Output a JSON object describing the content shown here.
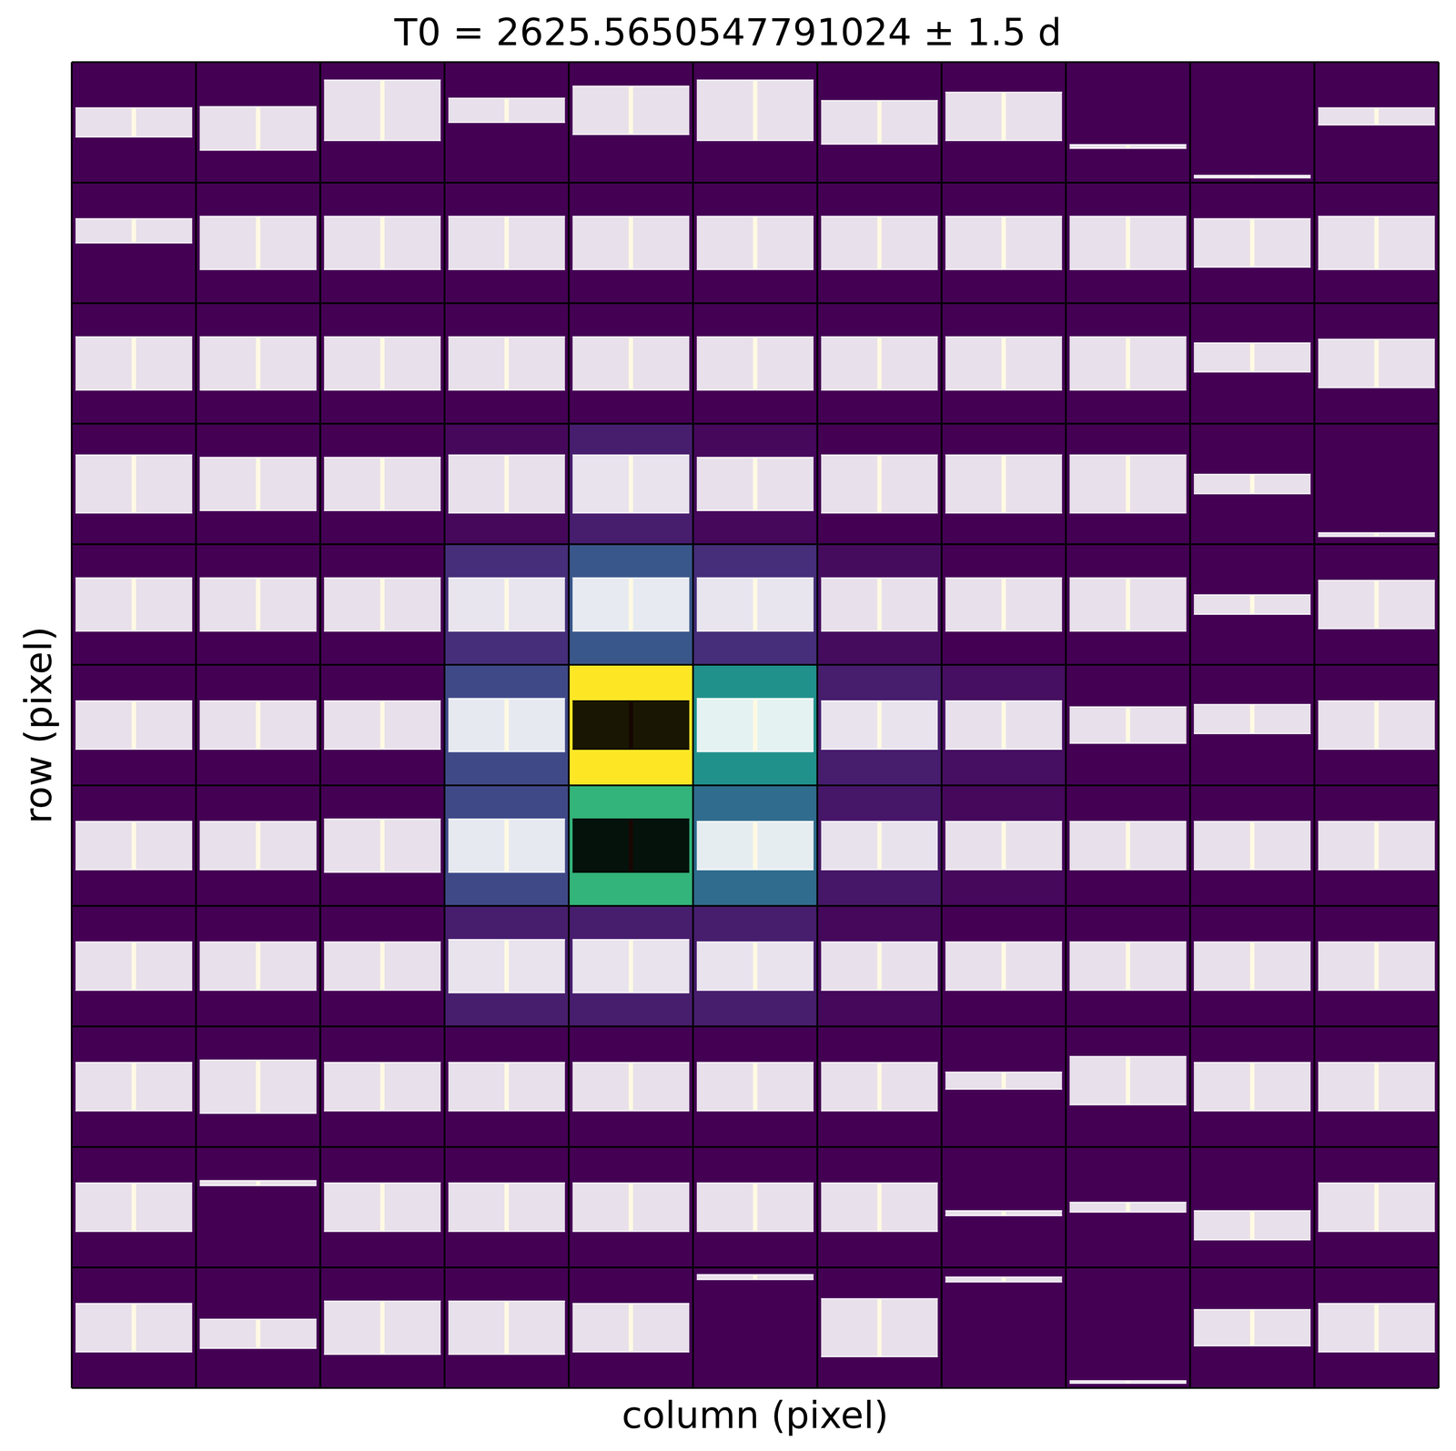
{
  "chart_data": {
    "type": "pixel_grid",
    "title": "T0 = 2625.5650547791024 ± 1.5 d",
    "xlabel": "column (pixel)",
    "ylabel": "row (pixel)",
    "tick_labels": false,
    "flux": [
      [
        0.0,
        0.0,
        0.0,
        0.0,
        0.0,
        0.0,
        0.0,
        0.0,
        0.0,
        0.0,
        0.0
      ],
      [
        0.0,
        0.0,
        0.0,
        0.0,
        0.0,
        0.0,
        0.0,
        0.0,
        0.0,
        0.0,
        0.0
      ],
      [
        0.0,
        0.0,
        0.0,
        0.0,
        0.0,
        0.0,
        0.0,
        0.0,
        0.0,
        0.0,
        0.0
      ],
      [
        0.0,
        0.0,
        0.0,
        0.02,
        0.08,
        0.02,
        0.0,
        0.0,
        0.0,
        0.0,
        0.0
      ],
      [
        0.0,
        0.0,
        0.0,
        0.13,
        0.27,
        0.13,
        0.03,
        0.0,
        0.0,
        0.0,
        0.0
      ],
      [
        0.0,
        0.0,
        0.0,
        0.22,
        1.0,
        0.5,
        0.08,
        0.04,
        0.0,
        0.0,
        0.0
      ],
      [
        0.0,
        0.0,
        0.0,
        0.22,
        0.65,
        0.35,
        0.06,
        0.02,
        0.0,
        0.0,
        0.0
      ],
      [
        0.0,
        0.0,
        0.0,
        0.08,
        0.08,
        0.08,
        0.02,
        0.0,
        0.0,
        0.0,
        0.0
      ],
      [
        0.0,
        0.0,
        0.0,
        0.0,
        0.0,
        0.0,
        0.0,
        0.0,
        0.0,
        0.0,
        0.0
      ],
      [
        0.0,
        0.0,
        0.0,
        0.0,
        0.0,
        0.0,
        0.0,
        0.0,
        0.0,
        0.0,
        0.0
      ],
      [
        0.0,
        0.0,
        0.0,
        0.0,
        0.0,
        0.0,
        0.0,
        0.0,
        0.0,
        0.0,
        0.0
      ]
    ],
    "level": [
      [
        0.5,
        0.45,
        0.6,
        0.6,
        0.6,
        0.6,
        0.5,
        0.55,
        0.3,
        0.05,
        0.55
      ],
      [
        0.6,
        0.5,
        0.5,
        0.5,
        0.5,
        0.5,
        0.5,
        0.5,
        0.5,
        0.5,
        0.5
      ],
      [
        0.5,
        0.5,
        0.5,
        0.5,
        0.5,
        0.5,
        0.5,
        0.5,
        0.5,
        0.55,
        0.5
      ],
      [
        0.5,
        0.5,
        0.5,
        0.5,
        0.5,
        0.5,
        0.5,
        0.5,
        0.5,
        0.5,
        0.08
      ],
      [
        0.5,
        0.5,
        0.5,
        0.5,
        0.5,
        0.5,
        0.5,
        0.5,
        0.5,
        0.5,
        0.5
      ],
      [
        0.5,
        0.5,
        0.5,
        0.5,
        0.5,
        0.5,
        0.5,
        0.5,
        0.5,
        0.55,
        0.5
      ],
      [
        0.5,
        0.5,
        0.5,
        0.5,
        0.5,
        0.5,
        0.5,
        0.5,
        0.5,
        0.5,
        0.5
      ],
      [
        0.5,
        0.5,
        0.5,
        0.5,
        0.5,
        0.5,
        0.5,
        0.5,
        0.5,
        0.5,
        0.5
      ],
      [
        0.5,
        0.5,
        0.5,
        0.5,
        0.5,
        0.5,
        0.5,
        0.55,
        0.55,
        0.5,
        0.5
      ],
      [
        0.5,
        0.7,
        0.5,
        0.5,
        0.5,
        0.5,
        0.5,
        0.45,
        0.5,
        0.35,
        0.5
      ],
      [
        0.5,
        0.45,
        0.5,
        0.5,
        0.5,
        0.92,
        0.5,
        0.9,
        0.05,
        0.5,
        0.5
      ]
    ],
    "spread": [
      [
        0.12,
        0.18,
        0.25,
        0.1,
        0.2,
        0.25,
        0.18,
        0.2,
        0.015,
        0.01,
        0.07
      ],
      [
        0.1,
        0.22,
        0.22,
        0.22,
        0.22,
        0.22,
        0.22,
        0.22,
        0.22,
        0.2,
        0.22
      ],
      [
        0.22,
        0.22,
        0.22,
        0.22,
        0.22,
        0.22,
        0.22,
        0.22,
        0.22,
        0.12,
        0.2
      ],
      [
        0.24,
        0.22,
        0.22,
        0.24,
        0.24,
        0.22,
        0.24,
        0.24,
        0.24,
        0.08,
        0.015
      ],
      [
        0.22,
        0.22,
        0.22,
        0.22,
        0.22,
        0.22,
        0.22,
        0.22,
        0.22,
        0.08,
        0.2
      ],
      [
        0.2,
        0.2,
        0.2,
        0.22,
        0.2,
        0.22,
        0.2,
        0.2,
        0.15,
        0.12,
        0.2
      ],
      [
        0.2,
        0.2,
        0.22,
        0.22,
        0.22,
        0.2,
        0.2,
        0.2,
        0.2,
        0.2,
        0.2
      ],
      [
        0.2,
        0.2,
        0.2,
        0.22,
        0.22,
        0.2,
        0.2,
        0.2,
        0.2,
        0.2,
        0.2
      ],
      [
        0.2,
        0.22,
        0.2,
        0.2,
        0.2,
        0.2,
        0.2,
        0.07,
        0.2,
        0.2,
        0.2
      ],
      [
        0.2,
        0.02,
        0.2,
        0.2,
        0.2,
        0.2,
        0.2,
        0.02,
        0.04,
        0.12,
        0.2
      ],
      [
        0.2,
        0.12,
        0.22,
        0.22,
        0.2,
        0.02,
        0.24,
        0.02,
        0.01,
        0.15,
        0.2
      ]
    ],
    "aperture": [
      [
        5,
        4
      ],
      [
        6,
        4
      ]
    ]
  }
}
